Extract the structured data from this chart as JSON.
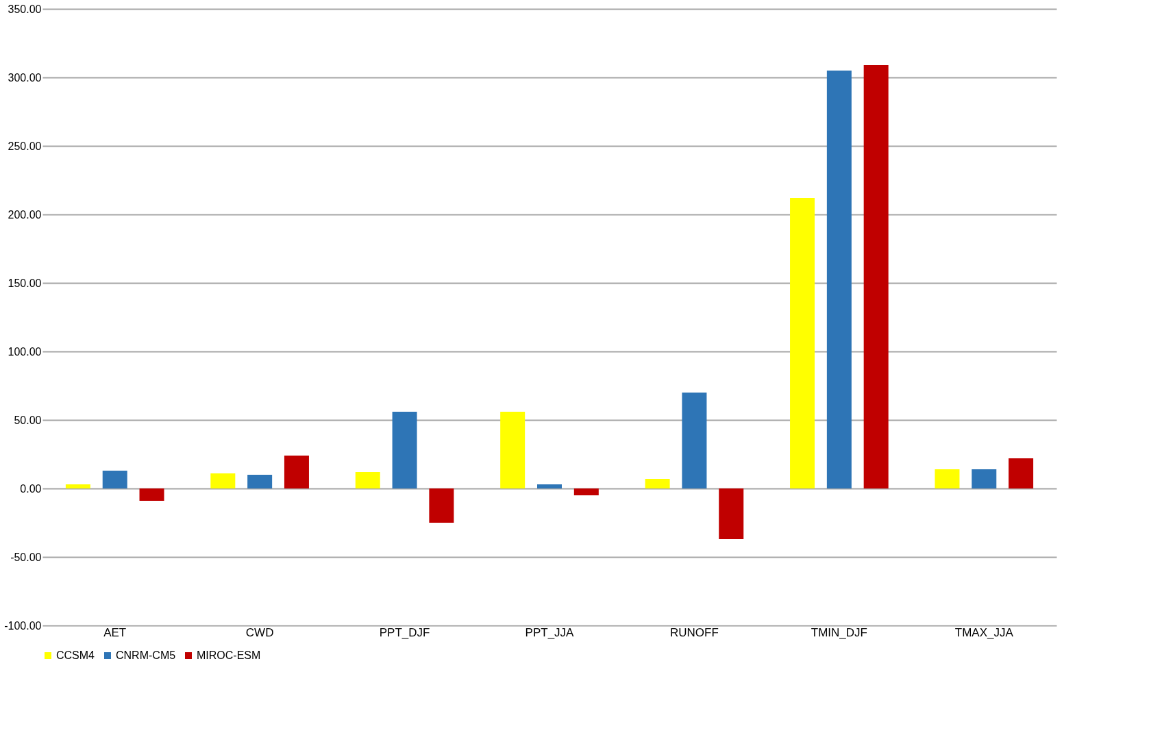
{
  "chart_data": {
    "type": "bar",
    "categories": [
      "AET",
      "CWD",
      "PPT_DJF",
      "PPT_JJA",
      "RUNOFF",
      "TMIN_DJF",
      "TMAX_JJA"
    ],
    "series": [
      {
        "name": "CCSM4",
        "color": "#ffff00",
        "values": [
          3,
          11,
          12,
          56,
          7,
          212,
          14
        ]
      },
      {
        "name": "CNRM-CM5",
        "color": "#2e75b6",
        "values": [
          13,
          10,
          56,
          3,
          70,
          305,
          14
        ]
      },
      {
        "name": "MIROC-ESM",
        "color": "#c00000",
        "values": [
          -9,
          24,
          -25,
          -5,
          -37,
          309,
          22
        ]
      }
    ],
    "ylim": [
      -100,
      350
    ],
    "yticks": [
      {
        "value": -100,
        "label": "-100.00"
      },
      {
        "value": -50,
        "label": "-50.00"
      },
      {
        "value": 0,
        "label": "0.00"
      },
      {
        "value": 50,
        "label": "50.00"
      },
      {
        "value": 100,
        "label": "100.00"
      },
      {
        "value": 150,
        "label": "150.00"
      },
      {
        "value": 200,
        "label": "200.00"
      },
      {
        "value": 250,
        "label": "250.00"
      },
      {
        "value": 300,
        "label": "300.00"
      },
      {
        "value": 350,
        "label": "350.00"
      }
    ],
    "grid": "y",
    "legend": "bottom"
  }
}
